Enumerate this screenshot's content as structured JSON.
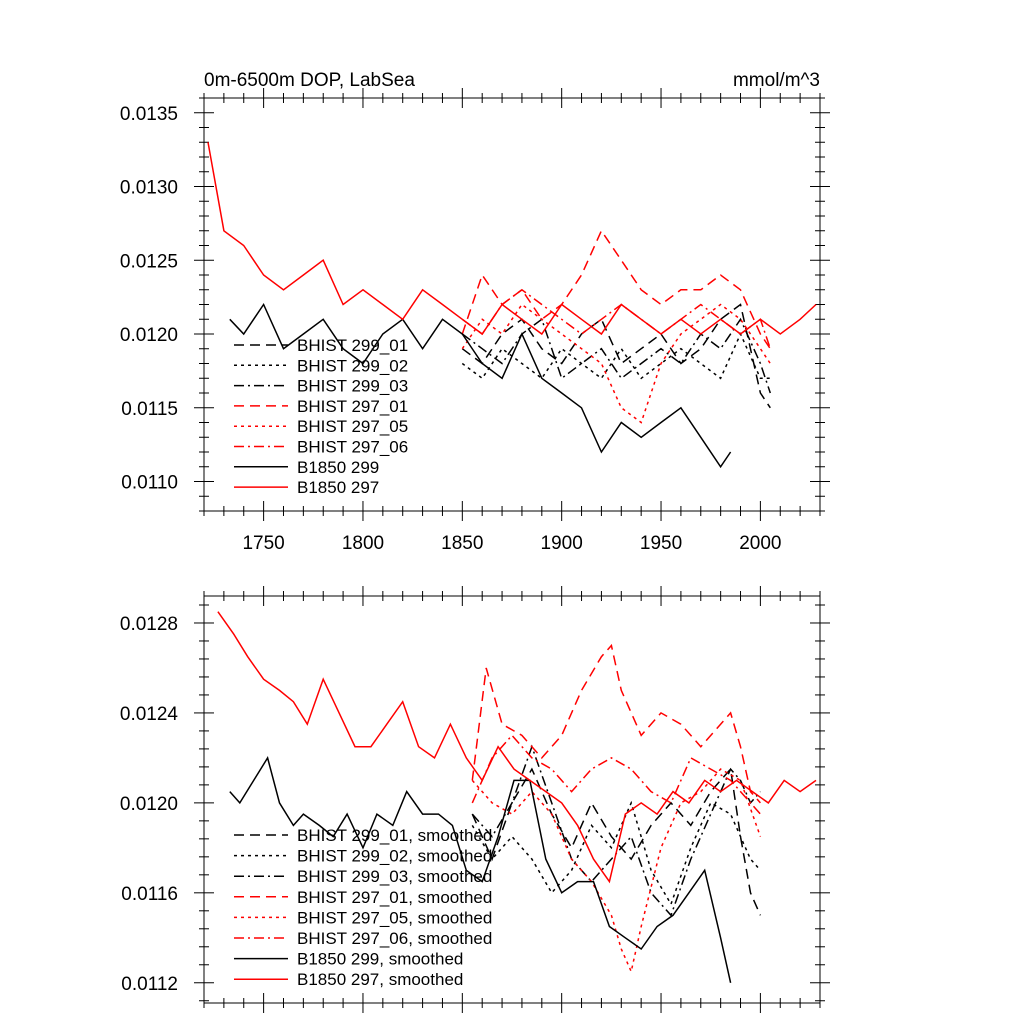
{
  "figure": {
    "title_left": "0m-6500m DOP, LabSea",
    "title_right": "mmol/m^3"
  },
  "chart_data": [
    {
      "type": "line",
      "title": "0m-6500m DOP, LabSea",
      "units": "mmol/m^3",
      "xlim": [
        1720,
        2030
      ],
      "ylim": [
        0.0108,
        0.0136
      ],
      "grid": false,
      "xticks": [
        1750,
        1800,
        1850,
        1900,
        1950,
        2000
      ],
      "yticks": [
        0.011,
        0.0115,
        0.012,
        0.0125,
        0.013,
        0.0135
      ],
      "ytick_labels": [
        "0.0110",
        "0.0115",
        "0.0120",
        "0.0125",
        "0.0130",
        "0.0135"
      ],
      "legend_position": "lower-left",
      "series": [
        {
          "name": "BHIST 299_01",
          "color": "#000000",
          "style": "dash",
          "x": [
            1850,
            1860,
            1870,
            1880,
            1890,
            1900,
            1910,
            1920,
            1930,
            1940,
            1950,
            1960,
            1970,
            1980,
            1990,
            2000,
            2005
          ],
          "y": [
            0.0119,
            0.0118,
            0.012,
            0.0121,
            0.0119,
            0.0118,
            0.012,
            0.0121,
            0.0118,
            0.0119,
            0.012,
            0.0118,
            0.0119,
            0.0121,
            0.0122,
            0.0116,
            0.0115
          ]
        },
        {
          "name": "BHIST 299_02",
          "color": "#000000",
          "style": "dot",
          "x": [
            1850,
            1860,
            1870,
            1880,
            1890,
            1900,
            1910,
            1920,
            1930,
            1940,
            1950,
            1960,
            1970,
            1980,
            1990,
            2000,
            2005
          ],
          "y": [
            0.0118,
            0.0117,
            0.0119,
            0.0118,
            0.0117,
            0.0119,
            0.0118,
            0.0117,
            0.0119,
            0.0117,
            0.0118,
            0.0119,
            0.0118,
            0.0117,
            0.012,
            0.0117,
            0.0117
          ]
        },
        {
          "name": "BHIST 299_03",
          "color": "#000000",
          "style": "dashdot",
          "x": [
            1850,
            1860,
            1870,
            1880,
            1890,
            1900,
            1910,
            1920,
            1930,
            1940,
            1950,
            1960,
            1970,
            1980,
            1990,
            2000,
            2005
          ],
          "y": [
            0.012,
            0.0119,
            0.0118,
            0.012,
            0.0121,
            0.0117,
            0.0118,
            0.0119,
            0.0117,
            0.0118,
            0.0119,
            0.0118,
            0.012,
            0.0119,
            0.0121,
            0.0118,
            0.0116
          ]
        },
        {
          "name": "BHIST 297_01",
          "color": "#ff0000",
          "style": "dash",
          "x": [
            1850,
            1860,
            1870,
            1880,
            1890,
            1900,
            1910,
            1920,
            1930,
            1940,
            1950,
            1960,
            1970,
            1980,
            1990,
            2000,
            2005
          ],
          "y": [
            0.012,
            0.0124,
            0.0122,
            0.0123,
            0.0121,
            0.0122,
            0.0124,
            0.0127,
            0.0125,
            0.0123,
            0.0122,
            0.0123,
            0.0123,
            0.0124,
            0.0123,
            0.012,
            0.0119
          ]
        },
        {
          "name": "BHIST 297_05",
          "color": "#ff0000",
          "style": "dot",
          "x": [
            1850,
            1860,
            1870,
            1880,
            1890,
            1900,
            1910,
            1920,
            1930,
            1940,
            1950,
            1960,
            1970,
            1980,
            1990,
            2000,
            2005
          ],
          "y": [
            0.0119,
            0.0121,
            0.012,
            0.0122,
            0.0121,
            0.012,
            0.0119,
            0.0118,
            0.0115,
            0.0114,
            0.0118,
            0.012,
            0.0121,
            0.0122,
            0.0121,
            0.0119,
            0.0118
          ]
        },
        {
          "name": "BHIST 297_06",
          "color": "#ff0000",
          "style": "dashdot",
          "x": [
            1850,
            1860,
            1870,
            1880,
            1890,
            1900,
            1910,
            1920,
            1930,
            1940,
            1950,
            1960,
            1970,
            1980,
            1990,
            2000,
            2005
          ],
          "y": [
            0.0121,
            0.012,
            0.0122,
            0.0123,
            0.0122,
            0.0121,
            0.012,
            0.0121,
            0.0122,
            0.0121,
            0.012,
            0.0121,
            0.0122,
            0.0121,
            0.012,
            0.0121,
            0.0119
          ]
        },
        {
          "name": "B1850 299",
          "color": "#000000",
          "style": "solid",
          "x": [
            1733,
            1740,
            1750,
            1760,
            1770,
            1780,
            1790,
            1800,
            1810,
            1820,
            1830,
            1840,
            1850,
            1860,
            1870,
            1880,
            1890,
            1900,
            1910,
            1920,
            1930,
            1940,
            1950,
            1960,
            1970,
            1980,
            1985
          ],
          "y": [
            0.0121,
            0.012,
            0.0122,
            0.0119,
            0.012,
            0.0121,
            0.0119,
            0.0118,
            0.012,
            0.0121,
            0.0119,
            0.0121,
            0.012,
            0.0118,
            0.0117,
            0.012,
            0.0117,
            0.0116,
            0.0115,
            0.0112,
            0.0114,
            0.0113,
            0.0114,
            0.0115,
            0.0113,
            0.0111,
            0.0112
          ]
        },
        {
          "name": "B1850 297",
          "color": "#ff0000",
          "style": "solid",
          "x": [
            1722,
            1730,
            1740,
            1750,
            1760,
            1770,
            1780,
            1790,
            1800,
            1810,
            1820,
            1830,
            1840,
            1850,
            1860,
            1870,
            1880,
            1890,
            1900,
            1910,
            1920,
            1930,
            1940,
            1950,
            1960,
            1970,
            1980,
            1990,
            2000,
            2010,
            2020,
            2028
          ],
          "y": [
            0.0133,
            0.0127,
            0.0126,
            0.0124,
            0.0123,
            0.0124,
            0.0125,
            0.0122,
            0.0123,
            0.0122,
            0.0121,
            0.0123,
            0.0122,
            0.0121,
            0.012,
            0.0122,
            0.0121,
            0.012,
            0.0122,
            0.0121,
            0.012,
            0.0122,
            0.0121,
            0.012,
            0.0121,
            0.012,
            0.0121,
            0.012,
            0.0121,
            0.012,
            0.0121,
            0.0122
          ]
        }
      ]
    },
    {
      "type": "line",
      "title": "",
      "xlim": [
        1720,
        2030
      ],
      "ylim": [
        0.01111,
        0.01292
      ],
      "grid": false,
      "xticks": [
        1750,
        1800,
        1850,
        1900,
        1950,
        2000
      ],
      "yticks": [
        0.0112,
        0.0116,
        0.012,
        0.0124,
        0.0128
      ],
      "ytick_labels": [
        "0.0112",
        "0.0116",
        "0.0120",
        "0.0124",
        "0.0128"
      ],
      "legend_position": "lower-left",
      "series": [
        {
          "name": "BHIST 299_01, smoothed",
          "color": "#000000",
          "style": "dash",
          "x": [
            1855,
            1865,
            1875,
            1885,
            1895,
            1905,
            1915,
            1925,
            1935,
            1945,
            1955,
            1965,
            1975,
            1985,
            1990,
            1995,
            2000
          ],
          "y": [
            0.01195,
            0.01175,
            0.012,
            0.01215,
            0.01195,
            0.0118,
            0.012,
            0.01185,
            0.01175,
            0.0119,
            0.012,
            0.0119,
            0.01205,
            0.01215,
            0.01185,
            0.0116,
            0.0115
          ]
        },
        {
          "name": "BHIST 299_02, smoothed",
          "color": "#000000",
          "style": "dot",
          "x": [
            1855,
            1865,
            1875,
            1885,
            1895,
            1905,
            1915,
            1925,
            1935,
            1945,
            1955,
            1965,
            1975,
            1985,
            1990,
            1995,
            2000
          ],
          "y": [
            0.0119,
            0.01175,
            0.01185,
            0.01175,
            0.0116,
            0.0117,
            0.0119,
            0.0118,
            0.012,
            0.0117,
            0.01155,
            0.0118,
            0.012,
            0.01195,
            0.01185,
            0.01175,
            0.0117
          ]
        },
        {
          "name": "BHIST 299_03, smoothed",
          "color": "#000000",
          "style": "dashdot",
          "x": [
            1855,
            1865,
            1875,
            1885,
            1895,
            1905,
            1915,
            1925,
            1935,
            1945,
            1955,
            1965,
            1975,
            1985,
            1990,
            1995,
            2000
          ],
          "y": [
            0.01195,
            0.01185,
            0.012,
            0.01225,
            0.012,
            0.01175,
            0.01165,
            0.01175,
            0.01185,
            0.0116,
            0.0115,
            0.01175,
            0.01195,
            0.01215,
            0.0121,
            0.012,
            0.01205
          ]
        },
        {
          "name": "BHIST 297_01, smoothed",
          "color": "#ff0000",
          "style": "dash",
          "x": [
            1855,
            1862,
            1870,
            1880,
            1890,
            1900,
            1910,
            1920,
            1925,
            1930,
            1940,
            1950,
            1960,
            1970,
            1980,
            1985,
            1990,
            1995,
            2000
          ],
          "y": [
            0.0121,
            0.0126,
            0.01235,
            0.0123,
            0.0122,
            0.0123,
            0.0125,
            0.01265,
            0.0127,
            0.0125,
            0.0123,
            0.0124,
            0.01235,
            0.01225,
            0.01235,
            0.0124,
            0.01225,
            0.01205,
            0.012
          ]
        },
        {
          "name": "BHIST 297_05, smoothed",
          "color": "#ff0000",
          "style": "dot",
          "x": [
            1855,
            1865,
            1875,
            1885,
            1895,
            1905,
            1915,
            1925,
            1930,
            1935,
            1940,
            1950,
            1960,
            1970,
            1980,
            1990,
            2000
          ],
          "y": [
            0.0121,
            0.012,
            0.01195,
            0.01205,
            0.01195,
            0.01175,
            0.01165,
            0.0115,
            0.01135,
            0.01125,
            0.01145,
            0.0118,
            0.012,
            0.01205,
            0.01215,
            0.0121,
            0.01185
          ]
        },
        {
          "name": "BHIST 297_06, smoothed",
          "color": "#ff0000",
          "style": "dashdot",
          "x": [
            1855,
            1865,
            1875,
            1885,
            1895,
            1905,
            1915,
            1925,
            1935,
            1945,
            1955,
            1965,
            1975,
            1985,
            1990,
            1995,
            2000
          ],
          "y": [
            0.012,
            0.0122,
            0.0123,
            0.0122,
            0.01215,
            0.01205,
            0.01215,
            0.0122,
            0.01215,
            0.01205,
            0.012,
            0.0122,
            0.01215,
            0.0121,
            0.01205,
            0.012,
            0.01195
          ]
        },
        {
          "name": "B1850 299, smoothed",
          "color": "#000000",
          "style": "solid",
          "x": [
            1733,
            1738,
            1745,
            1752,
            1758,
            1765,
            1770,
            1778,
            1785,
            1792,
            1800,
            1807,
            1815,
            1822,
            1830,
            1838,
            1845,
            1852,
            1860,
            1868,
            1876,
            1884,
            1892,
            1900,
            1908,
            1916,
            1924,
            1932,
            1940,
            1948,
            1956,
            1964,
            1972,
            1980,
            1985
          ],
          "y": [
            0.01205,
            0.012,
            0.0121,
            0.0122,
            0.012,
            0.0119,
            0.01195,
            0.0119,
            0.01185,
            0.01195,
            0.0118,
            0.01195,
            0.0119,
            0.01205,
            0.01195,
            0.01195,
            0.0119,
            0.0117,
            0.01165,
            0.01185,
            0.0121,
            0.0121,
            0.01175,
            0.0116,
            0.01165,
            0.01165,
            0.01145,
            0.0114,
            0.01135,
            0.01145,
            0.0115,
            0.0116,
            0.0117,
            0.0114,
            0.0112
          ]
        },
        {
          "name": "B1850 297, smoothed",
          "color": "#ff0000",
          "style": "solid",
          "x": [
            1727,
            1735,
            1742,
            1750,
            1758,
            1765,
            1772,
            1780,
            1788,
            1796,
            1804,
            1812,
            1820,
            1828,
            1836,
            1844,
            1852,
            1860,
            1868,
            1876,
            1884,
            1892,
            1900,
            1908,
            1916,
            1924,
            1932,
            1940,
            1948,
            1956,
            1964,
            1972,
            1980,
            1988,
            1996,
            2004,
            2012,
            2020,
            2028
          ],
          "y": [
            0.01285,
            0.01275,
            0.01265,
            0.01255,
            0.0125,
            0.01245,
            0.01235,
            0.01255,
            0.0124,
            0.01225,
            0.01225,
            0.01235,
            0.01245,
            0.01225,
            0.0122,
            0.01235,
            0.0122,
            0.0121,
            0.01225,
            0.01215,
            0.0121,
            0.01205,
            0.012,
            0.0119,
            0.01175,
            0.01165,
            0.01195,
            0.012,
            0.01195,
            0.01205,
            0.012,
            0.0121,
            0.01205,
            0.0121,
            0.01205,
            0.012,
            0.0121,
            0.01205,
            0.0121
          ]
        }
      ]
    }
  ]
}
